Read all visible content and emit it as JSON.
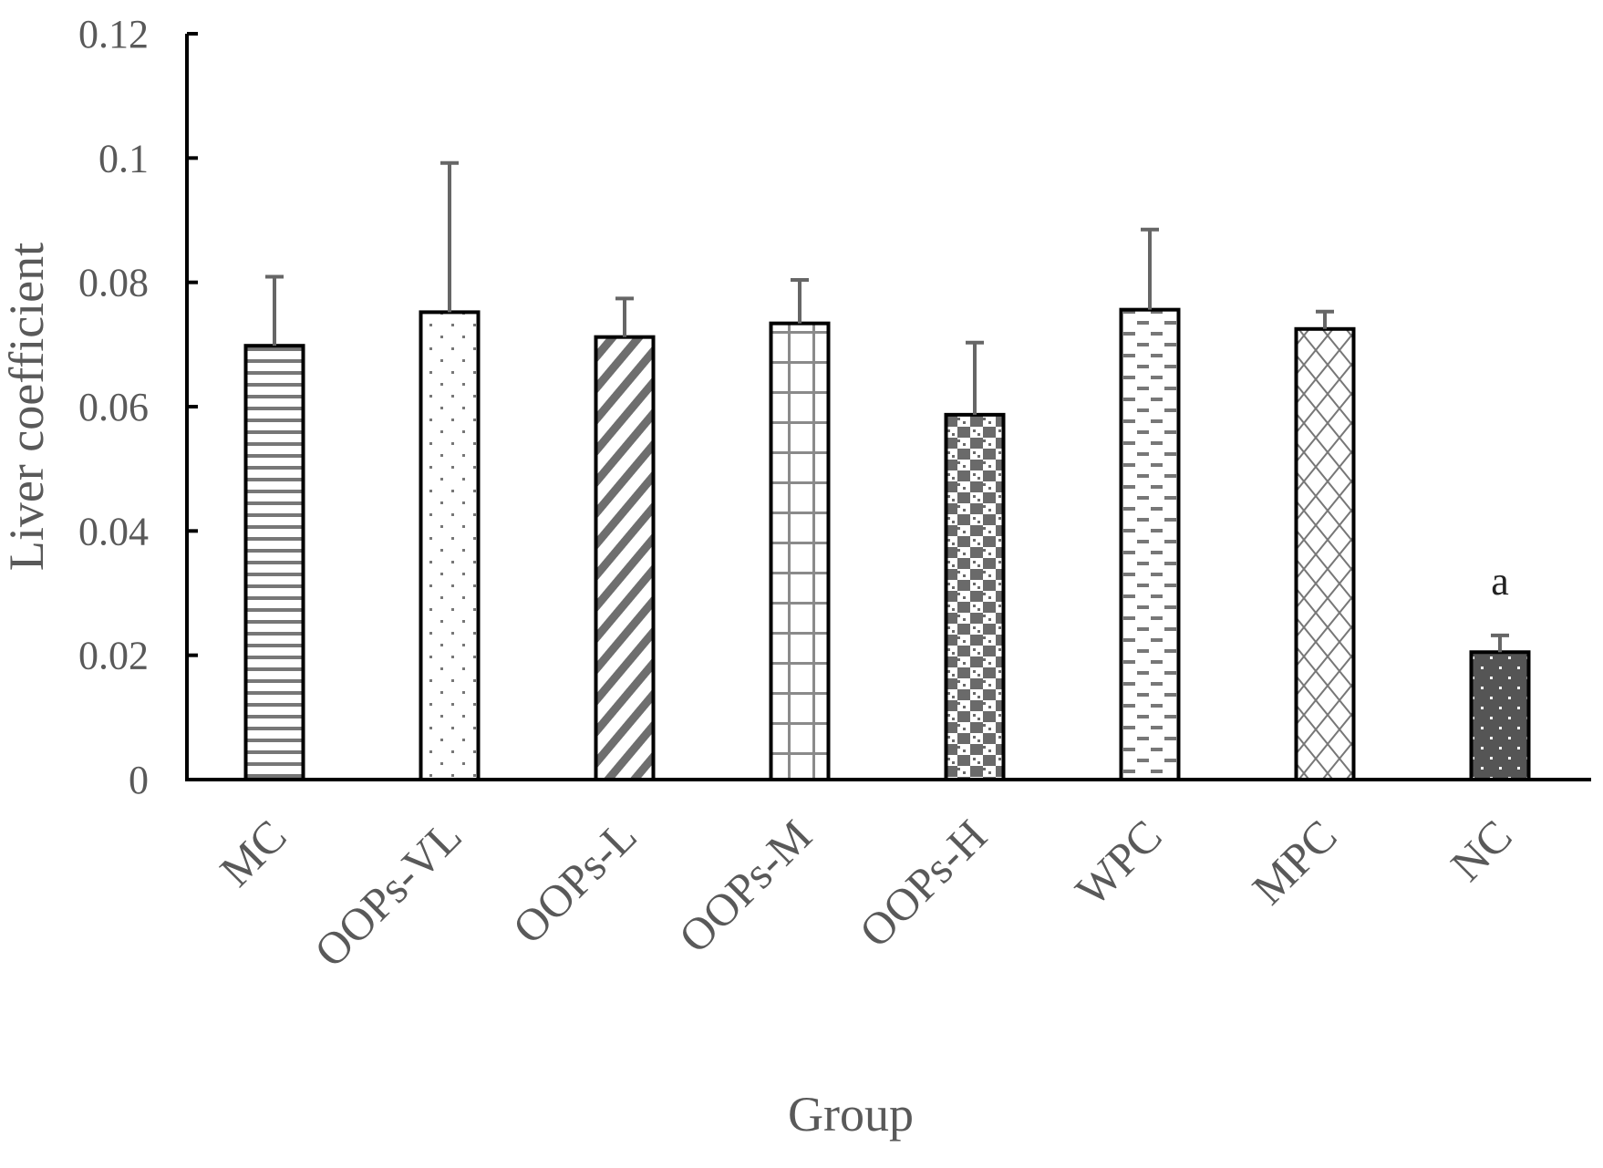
{
  "chart_data": {
    "type": "bar",
    "title": "",
    "xlabel": "Group",
    "ylabel": "Liver coefficient",
    "ylim": [
      0,
      0.12
    ],
    "yticks": [
      0,
      0.02,
      0.04,
      0.06,
      0.08,
      0.1,
      0.12
    ],
    "ytick_labels": [
      "0",
      "0.02",
      "0.04",
      "0.06",
      "0.08",
      "0.1",
      "0.12"
    ],
    "grid": false,
    "legend": "none",
    "categories": [
      "MC",
      "OOPs-VL",
      "OOPs-L",
      "OOPs-M",
      "OOPs-H",
      "WPC",
      "MPC",
      "NC"
    ],
    "values": [
      0.0698,
      0.0752,
      0.0712,
      0.0734,
      0.0587,
      0.0756,
      0.0725,
      0.0205
    ],
    "error_plus": [
      0.0111,
      0.024,
      0.0062,
      0.007,
      0.0116,
      0.0129,
      0.0028,
      0.0027
    ],
    "annotations": [
      "",
      "",
      "",
      "",
      "",
      "",
      "",
      "a"
    ],
    "patterns": [
      "horizontal-lines",
      "dots",
      "diagonal-stripes",
      "grid",
      "checker",
      "dashes",
      "diamond-lattice",
      "dark-dots"
    ],
    "colors": {
      "bar_stroke": "#000000",
      "pattern": "#777777",
      "error_bar": "#666666",
      "axis": "#000000",
      "text": "#595959",
      "nc_fill": "#555555"
    }
  }
}
